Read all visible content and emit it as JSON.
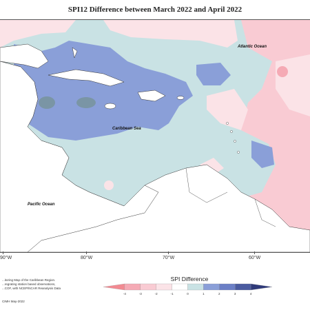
{
  "title": "SPI12 Difference between March 2022 and April 2022",
  "sea_labels": {
    "atlantic": "Atlantic Ocean",
    "caribbean": "Caribbean Sea",
    "pacific": "Pacific Ocean"
  },
  "longitude_labels": [
    "90°W",
    "80°W",
    "70°W",
    "60°W"
  ],
  "info_lines": [
    "...itoring Map of the Caribbean Region.",
    "...regrating station based observations,",
    "...COF, with NCEP/NCAR Reanalysis Data"
  ],
  "credit": "CIMH May-2022",
  "legend": {
    "title": "SPI Difference",
    "tick_labels": [
      "-4",
      "-3",
      "-2",
      "-1",
      "0",
      "1",
      "2",
      "3",
      "4"
    ],
    "colors": [
      "#f28a92",
      "#f5aab5",
      "#f9cbd3",
      "#fbe3e7",
      "#ffffff",
      "#c9e2e4",
      "#8a9fd8",
      "#6b7fc6",
      "#4a5ba0",
      "#2f3a7a"
    ]
  },
  "palette": {
    "land": "#ffffff",
    "light_teal": "#c9e2e4",
    "blue": "#8a9fd8",
    "grey_blue": "#7a95a5",
    "pink": "#f9cbd3",
    "light_pink": "#fbe3e7"
  }
}
